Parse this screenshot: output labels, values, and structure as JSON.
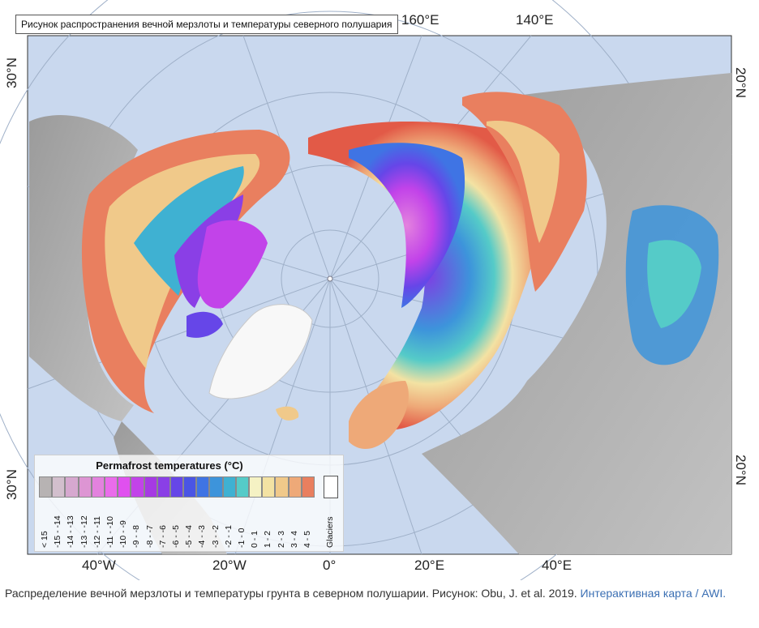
{
  "map": {
    "title_tooltip": "Рисунок распространения вечной мерзлоты и температуры северного полушария",
    "top_longitudes": [
      "160°E",
      "140°E"
    ],
    "bottom_longitudes": [
      "40°W",
      "20°W",
      "0°",
      "20°E",
      "40°E"
    ],
    "left_latitudes": [
      "30°N",
      "30°N"
    ],
    "right_latitudes": [
      "20°N",
      "20°N"
    ]
  },
  "legend": {
    "title": "Permafrost temperatures (°C)",
    "classes": [
      {
        "label": "< 15",
        "color": "#b7b3b3"
      },
      {
        "label": "-15 - -14",
        "color": "#d2bfcd"
      },
      {
        "label": "-14 - -13",
        "color": "#d6a8cf"
      },
      {
        "label": "-13 - -12",
        "color": "#dd95d3"
      },
      {
        "label": "-12 - -11",
        "color": "#e382de"
      },
      {
        "label": "-11 - -10",
        "color": "#ea6ceb"
      },
      {
        "label": "-10 - -9",
        "color": "#e050ef"
      },
      {
        "label": "-9 - -8",
        "color": "#c243e9"
      },
      {
        "label": "-8 - -7",
        "color": "#a63ae3"
      },
      {
        "label": "-7 - -6",
        "color": "#8a3fe6"
      },
      {
        "label": "-6 - -5",
        "color": "#6646e8"
      },
      {
        "label": "-5 - -4",
        "color": "#4a55e4"
      },
      {
        "label": "-4 - -3",
        "color": "#3f74e4"
      },
      {
        "label": "-3 - -2",
        "color": "#3d94db"
      },
      {
        "label": "-2 - -1",
        "color": "#3fb1d2"
      },
      {
        "label": "-1 - 0",
        "color": "#55cbc8"
      },
      {
        "label": "0 - 1",
        "color": "#f5f2c4"
      },
      {
        "label": "1 - 2",
        "color": "#f3e2a3"
      },
      {
        "label": "2 - 3",
        "color": "#f0c98a"
      },
      {
        "label": "3 - 4",
        "color": "#eea978"
      },
      {
        "label": "4 - 5",
        "color": "#e97f5f"
      }
    ],
    "glacier_label": "Glaciers",
    "glacier_color": "#ffffff"
  },
  "caption": {
    "text": "Распределение вечной мерзлоты и температуры грунта в северном полушарии. Рисунок: Obu, J. et al. 2019.",
    "link_text": "Интерактивная карта / AWI."
  },
  "colors": {
    "ocean": "#c9d8ee",
    "land_gray": "#b4b4b4",
    "graticule": "#9fb0c8"
  }
}
